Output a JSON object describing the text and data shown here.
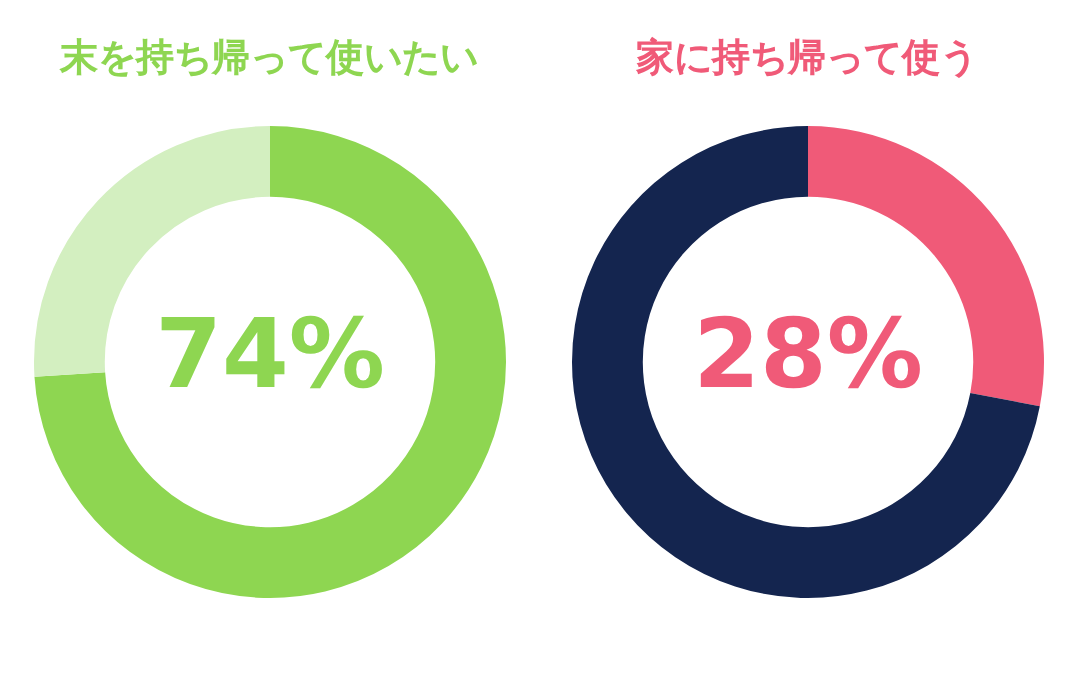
{
  "chart_data": [
    {
      "type": "donut",
      "title": "末を持ち帰って使いたい",
      "categories": [
        null,
        null
      ],
      "values": [
        74,
        26
      ],
      "colors": [
        "#8ed651",
        "#d3efc0"
      ],
      "value_labels": [
        "74%",
        null
      ]
    },
    {
      "type": "donut",
      "title": "家に持ち帰って使う",
      "categories": [
        null,
        null
      ],
      "values": [
        28,
        72
      ],
      "colors": [
        "#f05a78",
        "#14254f"
      ],
      "value_labels": [
        "28%",
        null
      ]
    }
  ]
}
